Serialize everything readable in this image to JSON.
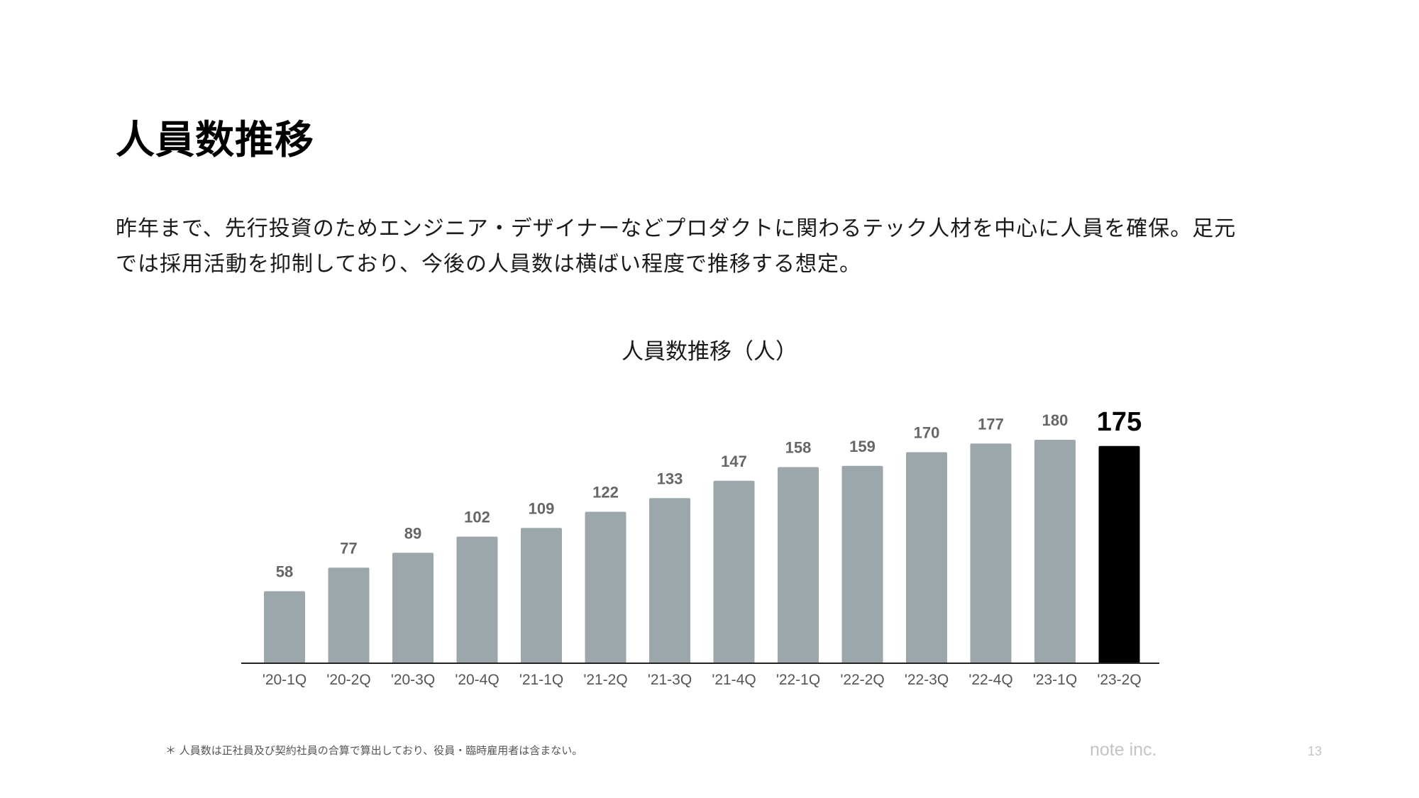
{
  "slide": {
    "title": "人員数推移",
    "lead_line1": "昨年まで、先行投資のためエンジニア・デザイナーなどプロダクトに関わるテック人材を中心に人員を確保。足元",
    "lead_line2": "では採用活動を抑制しており、今後の人員数は横ばい程度で推移する想定。",
    "footnote": "＊ 人員数は正社員及び契約社員の合算で算出しており、役員・臨時雇用者は含まない。",
    "brand": "note inc.",
    "page_number": "13"
  },
  "colors": {
    "bar": "#9ca7ac",
    "bar_highlight": "#000000",
    "label": "#666666",
    "label_highlight": "#000000",
    "tick": "#555555",
    "axis": "#222222"
  },
  "chart_data": {
    "type": "bar",
    "title": "人員数推移（人）",
    "categories": [
      "'20-1Q",
      "'20-2Q",
      "'20-3Q",
      "'20-4Q",
      "'21-1Q",
      "'21-2Q",
      "'21-3Q",
      "'21-4Q",
      "'22-1Q",
      "'22-2Q",
      "'22-3Q",
      "'22-4Q",
      "'23-1Q",
      "'23-2Q"
    ],
    "values": [
      58,
      77,
      89,
      102,
      109,
      122,
      133,
      147,
      158,
      159,
      170,
      177,
      180,
      175
    ],
    "highlight_index": 13,
    "ylim": [
      0,
      180
    ],
    "grid": false,
    "data_labels": true
  }
}
